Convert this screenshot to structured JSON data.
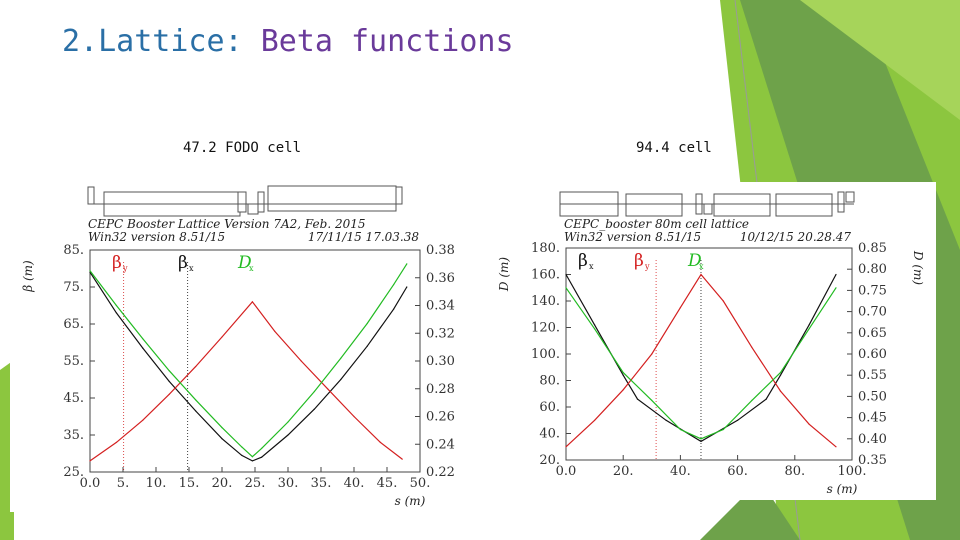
{
  "slide": {
    "title_prefix": "2.Lattice: ",
    "title_accent": "Beta functions"
  },
  "captions": {
    "left": "47.2 FODO cell",
    "right": "94.4  cell"
  },
  "colors": {
    "title": "#2a6fa6",
    "accent": "#6a3a9a",
    "deco_green": "#8cc63f",
    "deco_dark": "#5a9a3c",
    "beta_x": "#111111",
    "beta_y": "#d42020",
    "dx": "#22bb22"
  },
  "chart_data": [
    {
      "type": "line",
      "header_line1": "CEPC Booster Lattice Version 7A2, Feb. 2015",
      "header_line2_left": "Win32 version 8.51/15",
      "header_line2_right": "17/11/15  17.03.38",
      "xlabel": "s (m)",
      "ylabel_left": "β (m)",
      "ylabel_right": "",
      "xlim": [
        0,
        50
      ],
      "ylim_left": [
        25,
        85
      ],
      "ylim_right": [
        0.22,
        0.38
      ],
      "x_ticks": [
        "0.0",
        "5.",
        "10.",
        "15.",
        "20.",
        "25.",
        "30.",
        "35.",
        "40.",
        "45.",
        "50."
      ],
      "y_left_ticks": [
        "25.",
        "35.",
        "45.",
        "55.",
        "65.",
        "75.",
        "85."
      ],
      "y_right_ticks": [
        "0.22",
        "0.24",
        "0.26",
        "0.28",
        "0.30",
        "0.32",
        "0.34",
        "0.36",
        "0.38"
      ],
      "legend": {
        "beta_x_symbol": "β",
        "beta_x_sub": "x",
        "beta_y_symbol": "β",
        "beta_y_sub": "y",
        "dx_symbol": "D",
        "dx_sub": "x"
      },
      "series": [
        {
          "name": "βx",
          "axis": "left",
          "color": "#111111",
          "x": [
            0,
            4,
            8,
            12,
            16,
            20,
            23,
            24.6,
            26,
            30,
            34,
            38,
            42,
            46,
            48
          ],
          "y": [
            79,
            68,
            58.5,
            49.5,
            41.5,
            34,
            29.5,
            28,
            29,
            35,
            42,
            50,
            59,
            69,
            75
          ]
        },
        {
          "name": "βy",
          "axis": "left",
          "color": "#d42020",
          "x": [
            0,
            4,
            8,
            12,
            16,
            20,
            24.6,
            28,
            32,
            36,
            40,
            44,
            47.3
          ],
          "y": [
            28,
            33,
            39,
            46,
            53.5,
            61.5,
            71,
            63,
            55,
            47.5,
            40,
            33,
            28.5
          ]
        },
        {
          "name": "Dx",
          "axis": "right",
          "color": "#22bb22",
          "x": [
            0,
            4,
            8,
            12,
            16,
            20,
            23,
            24.6,
            26,
            30,
            34,
            38,
            42,
            46,
            48
          ],
          "y": [
            0.365,
            0.34,
            0.316,
            0.293,
            0.272,
            0.252,
            0.238,
            0.231,
            0.237,
            0.256,
            0.278,
            0.302,
            0.327,
            0.355,
            0.37
          ]
        }
      ],
      "markers_x": [
        5.1,
        14.8
      ]
    },
    {
      "type": "line",
      "header_line1": "CEPC_booster 80m cell lattice",
      "header_line2_left": "Win32 version 8.51/15",
      "header_line2_right": "10/12/15  20.28.47",
      "xlabel": "s (m)",
      "ylabel_left": "D (m)",
      "ylabel_right": "D (m)",
      "xlim": [
        0,
        100
      ],
      "ylim_left": [
        20,
        180
      ],
      "ylim_right": [
        0.35,
        0.85
      ],
      "x_ticks": [
        "0.0",
        "20.",
        "40.",
        "60.",
        "80.",
        "100."
      ],
      "y_left_ticks": [
        "20.",
        "40.",
        "60.",
        "80.",
        "100.",
        "120.",
        "140.",
        "160.",
        "180."
      ],
      "y_right_ticks": [
        "0.35",
        "0.40",
        "0.45",
        "0.50",
        "0.55",
        "0.60",
        "0.65",
        "0.70",
        "0.75",
        "0.80",
        "0.85"
      ],
      "legend": {
        "beta_x_symbol": "β",
        "beta_x_sub": "x",
        "beta_y_symbol": "β",
        "beta_y_sub": "y",
        "dx_symbol": "D",
        "dx_sub": "x"
      },
      "series": [
        {
          "name": "βx",
          "axis": "left",
          "color": "#111111",
          "x": [
            0,
            10,
            20,
            25,
            35,
            47.2,
            60,
            70,
            75,
            85,
            94.4
          ],
          "y": [
            160,
            122,
            84,
            66,
            50,
            34,
            50,
            66,
            84,
            122,
            160
          ]
        },
        {
          "name": "βy",
          "axis": "left",
          "color": "#d42020",
          "x": [
            0,
            10,
            20,
            30,
            40,
            47.2,
            55,
            65,
            75,
            85,
            94.4
          ],
          "y": [
            30,
            50,
            73,
            100,
            135,
            160,
            140,
            105,
            72,
            47,
            30
          ]
        },
        {
          "name": "Dx",
          "axis": "left",
          "color": "#22bb22",
          "x": [
            0,
            10,
            20,
            30,
            40,
            47.2,
            55,
            65,
            75,
            85,
            94.4
          ],
          "y": [
            150,
            119,
            86,
            65,
            43,
            36,
            43,
            65,
            86,
            119,
            150
          ]
        }
      ],
      "markers_x": [
        31.5,
        47.2
      ]
    }
  ]
}
